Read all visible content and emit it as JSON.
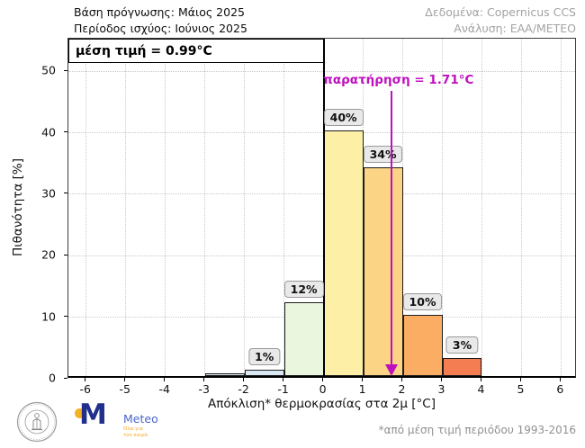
{
  "header": {
    "forecast_base": "Βάση πρόγνωσης: Μάιος 2025",
    "valid_period": "Περίοδος ισχύος: Ιούνιος 2025",
    "data_source": "Δεδομένα: Copernicus CCS",
    "analysis": "Ανάλυση: ΕΑΑ/ΜΕΤΕΟ"
  },
  "chart_data": {
    "type": "bar",
    "title": "",
    "xlabel": "Απόκλιση* θερμοκρασίας στα 2μ [°C]",
    "ylabel": "Πιθανότητα [%]",
    "xlim": [
      -6.45,
      6.4
    ],
    "ylim": [
      0,
      55.3
    ],
    "x_ticks": [
      -6,
      -5,
      -4,
      -3,
      -2,
      -1,
      0,
      1,
      2,
      3,
      4,
      5,
      6
    ],
    "y_ticks": [
      0,
      10,
      20,
      30,
      40,
      50
    ],
    "grid": "dotted",
    "zero_line_x": 0,
    "mean_label": "μέση τιμή = 0.99°C",
    "mean_value_c": 0.99,
    "observation": {
      "label": "παρατήρηση = 1.71°C",
      "x": 1.71,
      "color": "#bf10bf"
    },
    "bins": [
      {
        "from": -3,
        "to": -2,
        "value": 0.5,
        "label": "",
        "color": "#d9e8f1"
      },
      {
        "from": -2,
        "to": -1,
        "value": 1,
        "label": "1%",
        "color": "#d8e9f3"
      },
      {
        "from": -1,
        "to": 0,
        "value": 12,
        "label": "12%",
        "color": "#eaf6dd"
      },
      {
        "from": 0,
        "to": 1,
        "value": 40,
        "label": "40%",
        "color": "#fdf0a6"
      },
      {
        "from": 1,
        "to": 2,
        "value": 34,
        "label": "34%",
        "color": "#fbd485"
      },
      {
        "from": 2,
        "to": 3,
        "value": 10,
        "label": "10%",
        "color": "#fbad64"
      },
      {
        "from": 3,
        "to": 4,
        "value": 3,
        "label": "3%",
        "color": "#f57d52"
      }
    ]
  },
  "footer": {
    "footnote": "*από μέση τιμή περιόδου 1993-2016",
    "meteo": {
      "name": "Meteo",
      "tagline": "Όλα για\nτον καιρό"
    }
  },
  "colors": {
    "grid": "#c9c9c9",
    "bar_edge": "#1c1c1c",
    "zero_line": "#000000",
    "label_box_bg": "#e9e9e9",
    "label_box_border": "#999999",
    "header_muted": "#a3a3a3",
    "footnote_gray": "#909090",
    "meteo_blue": "#20308c",
    "meteo_yellow": "#f4b223"
  }
}
